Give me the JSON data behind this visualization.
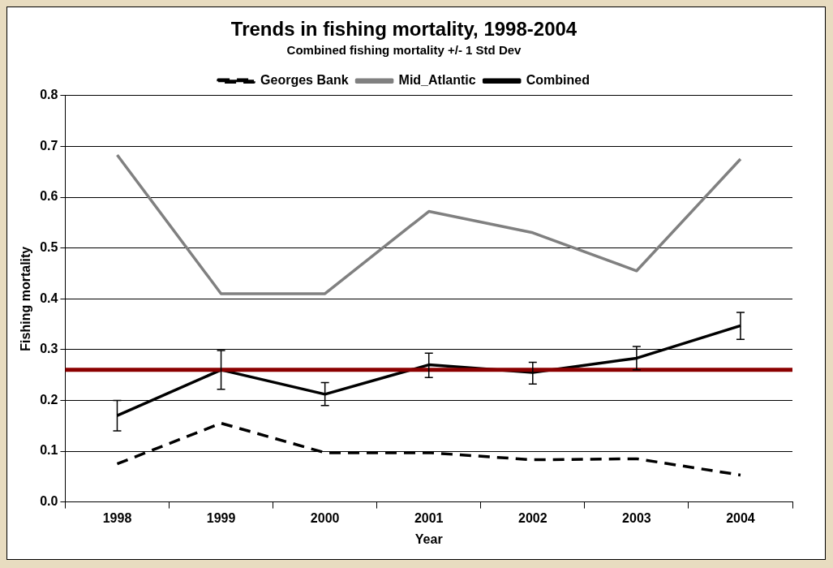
{
  "chart_data": {
    "type": "line",
    "title": "Trends in fishing mortality, 1998-2004",
    "subtitle": "Combined fishing mortality +/- 1 Std Dev",
    "xlabel": "Year",
    "ylabel": "Fishing mortality",
    "categories": [
      "1998",
      "1999",
      "2000",
      "2001",
      "2002",
      "2003",
      "2004"
    ],
    "series": [
      {
        "name": "Georges Bank",
        "color": "#000000",
        "line_style": "dashed",
        "values": [
          0.075,
          0.155,
          0.097,
          0.097,
          0.083,
          0.085,
          0.053
        ]
      },
      {
        "name": "Mid_Atlantic",
        "color": "#808080",
        "values": [
          0.683,
          0.41,
          0.41,
          0.572,
          0.53,
          0.455,
          0.675
        ]
      },
      {
        "name": "Combined",
        "color": "#000000",
        "values": [
          0.17,
          0.26,
          0.212,
          0.27,
          0.255,
          0.283,
          0.347
        ],
        "errors": [
          [
            0.14,
            0.2
          ],
          [
            0.222,
            0.298
          ],
          [
            0.19,
            0.235
          ],
          [
            0.245,
            0.293
          ],
          [
            0.232,
            0.275
          ],
          [
            0.26,
            0.306
          ],
          [
            0.32,
            0.373
          ]
        ]
      }
    ],
    "ref_lines": [
      {
        "axis": "y",
        "value": 0.26,
        "color": "#8b0000"
      }
    ],
    "ylim": [
      0,
      0.8
    ],
    "yticks": [
      {
        "value": 0,
        "label": "0.0"
      },
      {
        "value": 0.1,
        "label": "0.1"
      },
      {
        "value": 0.2,
        "label": "0.2"
      },
      {
        "value": 0.3,
        "label": "0.3"
      },
      {
        "value": 0.4,
        "label": "0.4"
      },
      {
        "value": 0.5,
        "label": "0.5"
      },
      {
        "value": 0.6,
        "label": "0.6"
      },
      {
        "value": 0.7,
        "label": "0.7"
      },
      {
        "value": 0.8,
        "label": "0.8"
      }
    ],
    "grid": "y",
    "legend": "top",
    "marker": "none",
    "line_style": "solid"
  }
}
